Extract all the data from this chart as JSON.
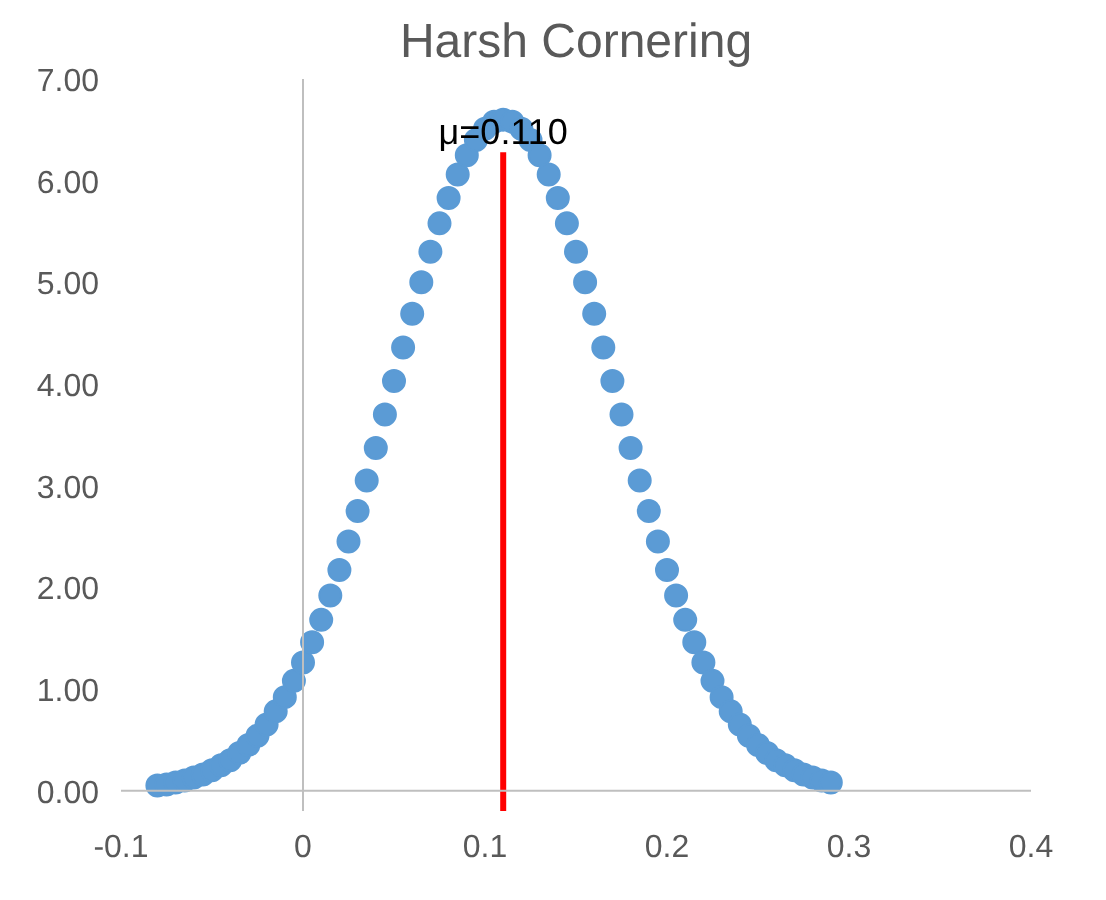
{
  "chart_data": {
    "type": "scatter",
    "title": "Harsh Cornering",
    "x": [
      -0.08,
      -0.075,
      -0.07,
      -0.065,
      -0.06,
      -0.055,
      -0.05,
      -0.045,
      -0.04,
      -0.035,
      -0.03,
      -0.025,
      -0.02,
      -0.015,
      -0.01,
      -0.005,
      0,
      0.005,
      0.01,
      0.015,
      0.02,
      0.025,
      0.03,
      0.035,
      0.04,
      0.045,
      0.05,
      0.055,
      0.06,
      0.065,
      0.07,
      0.075,
      0.08,
      0.085,
      0.09,
      0.095,
      0.1,
      0.105,
      0.11,
      0.115,
      0.12,
      0.125,
      0.13,
      0.135,
      0.14,
      0.145,
      0.15,
      0.155,
      0.16,
      0.165,
      0.17,
      0.175,
      0.18,
      0.185,
      0.19,
      0.195,
      0.2,
      0.205,
      0.21,
      0.215,
      0.22,
      0.225,
      0.23,
      0.235,
      0.24,
      0.245,
      0.25,
      0.255,
      0.26,
      0.265,
      0.27,
      0.275,
      0.28,
      0.285,
      0.29
    ],
    "series": [
      {
        "color": "#5b9bd5",
        "values": [
          0.05,
          0.06,
          0.08,
          0.1,
          0.13,
          0.16,
          0.2,
          0.25,
          0.3,
          0.37,
          0.45,
          0.54,
          0.65,
          0.78,
          0.92,
          1.08,
          1.26,
          1.46,
          1.68,
          1.92,
          2.17,
          2.45,
          2.75,
          3.05,
          3.37,
          3.7,
          4.03,
          4.36,
          4.69,
          5.0,
          5.3,
          5.58,
          5.83,
          6.06,
          6.25,
          6.4,
          6.51,
          6.58,
          6.6,
          6.58,
          6.51,
          6.4,
          6.25,
          6.06,
          5.83,
          5.58,
          5.3,
          5.0,
          4.69,
          4.36,
          4.03,
          3.7,
          3.37,
          3.05,
          2.75,
          2.45,
          2.17,
          1.92,
          1.68,
          1.46,
          1.26,
          1.08,
          0.92,
          0.78,
          0.65,
          0.54,
          0.45,
          0.37,
          0.3,
          0.25,
          0.2,
          0.16,
          0.13,
          0.1,
          0.08
        ]
      }
    ],
    "marker": "circle",
    "xlim": [
      -0.1,
      0.4
    ],
    "xticks": [
      -0.1,
      0,
      0.1,
      0.2,
      0.3,
      0.4
    ],
    "ylim": [
      -0.2,
      7.0
    ],
    "yticks": [
      {
        "value": 0,
        "label": "0.00"
      },
      {
        "value": 1,
        "label": "1.00"
      },
      {
        "value": 2,
        "label": "2.00"
      },
      {
        "value": 3,
        "label": "3.00"
      },
      {
        "value": 4,
        "label": "4.00"
      },
      {
        "value": 5,
        "label": "5.00"
      },
      {
        "value": 6,
        "label": "6.00"
      },
      {
        "value": 7,
        "label": "7.00"
      }
    ],
    "ref_lines": [
      {
        "axis": "x",
        "value": 0,
        "color": "#bfbfbf",
        "line_style": "solid"
      },
      {
        "axis": "x",
        "value": 0.11,
        "label": "μ=0.110",
        "color": "#ff0000",
        "line_style": "solid"
      }
    ]
  }
}
